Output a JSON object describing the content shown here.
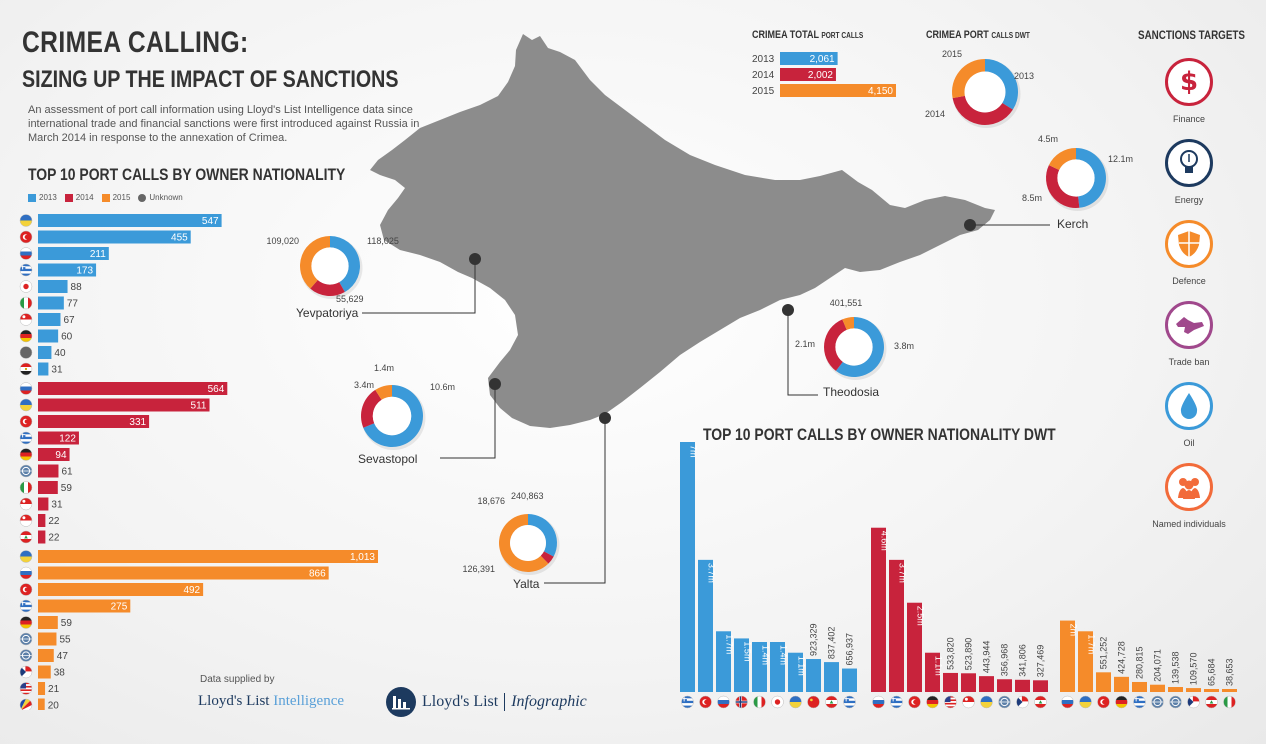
{
  "header": {
    "title": "CRIMEA CALLING:",
    "subtitle": "SIZING UP THE IMPACT OF SANCTIONS",
    "intro": "An assessment of port call information using Lloyd's List Intelligence data since international trade and financial sanctions were first introduced against Russia in March 2014 in response to the annexation of Crimea."
  },
  "colors": {
    "y2013": "#3b9ad9",
    "y2014": "#c8233c",
    "y2015": "#f58b2a",
    "unknown": "#666666",
    "map": "#8c8c8c"
  },
  "legend": {
    "items": [
      "2013",
      "2014",
      "2015",
      "Unknown"
    ]
  },
  "credits": {
    "supplied": "Data supplied by",
    "ll_intelligence_a": "Lloyd's List",
    "ll_intelligence_b": "Intelligence",
    "ll_infographic_a": "Lloyd's List",
    "ll_infographic_b": "Infographic"
  },
  "sanctions": {
    "title": "SANCTIONS TARGETS",
    "items": [
      {
        "label": "Finance",
        "icon": "dollar-icon",
        "color": "#c8233c"
      },
      {
        "label": "Energy",
        "icon": "lightbulb-icon",
        "color": "#1d3a5f"
      },
      {
        "label": "Defence",
        "icon": "shield-icon",
        "color": "#f58b2a"
      },
      {
        "label": "Trade ban",
        "icon": "crimea-map-icon",
        "color": "#a0488c"
      },
      {
        "label": "Oil",
        "icon": "oil-drop-icon",
        "color": "#3b9ad9"
      },
      {
        "label": "Named individuals",
        "icon": "people-icon",
        "color": "#f26b3a"
      }
    ]
  },
  "chart_data": [
    {
      "type": "bar",
      "id": "total",
      "title": "CRIMEA TOTAL",
      "title_small": "PORT CALLS",
      "categories": [
        "2013",
        "2014",
        "2015"
      ],
      "values": [
        2061,
        2002,
        4150
      ],
      "labels": [
        "2,061",
        "2,002",
        "4,150"
      ]
    },
    {
      "type": "pie",
      "id": "dwt",
      "title": "CRIMEA PORT",
      "title_small": "CALLS DWT",
      "slices": [
        {
          "label": "2013",
          "value": 34,
          "year": "y2013"
        },
        {
          "label": "2014",
          "value": 38,
          "year": "y2014"
        },
        {
          "label": "2015",
          "value": 28,
          "year": "y2015"
        }
      ]
    },
    {
      "type": "bar",
      "id": "nationality",
      "title": "TOP 10 PORT CALLS BY OWNER NATIONALITY",
      "orientation": "horizontal",
      "series": [
        {
          "name": "2013",
          "year": "y2013",
          "flags": [
            "ua",
            "tr",
            "ru",
            "gr",
            "jp",
            "it",
            "sg",
            "de",
            "unknown",
            "eg"
          ],
          "values": [
            547,
            455,
            211,
            173,
            88,
            77,
            67,
            60,
            40,
            31
          ]
        },
        {
          "name": "2014",
          "year": "y2014",
          "flags": [
            "ru",
            "ua",
            "tr",
            "gr",
            "de",
            "world",
            "it",
            "sg",
            "sg",
            "lb"
          ],
          "values": [
            564,
            511,
            331,
            122,
            94,
            61,
            59,
            31,
            22,
            22
          ]
        },
        {
          "name": "2015",
          "year": "y2015",
          "flags": [
            "ua",
            "ru",
            "tr",
            "gr",
            "de",
            "world",
            "world",
            "kz",
            "us",
            "sc"
          ],
          "values": [
            1013,
            866,
            492,
            275,
            59,
            55,
            47,
            38,
            21,
            20
          ]
        }
      ]
    },
    {
      "type": "pie",
      "id": "ports",
      "ports": [
        {
          "name": "Yevpatoriya",
          "slices": [
            {
              "label": "118,025",
              "value": 118025,
              "year": "y2013"
            },
            {
              "label": "55,629",
              "value": 55629,
              "year": "y2014"
            },
            {
              "label": "109,020",
              "value": 109020,
              "year": "y2015"
            }
          ]
        },
        {
          "name": "Sevastopol",
          "slices": [
            {
              "label": "10.6m",
              "value": 10.6,
              "year": "y2013"
            },
            {
              "label": "3.4m",
              "value": 3.4,
              "year": "y2014"
            },
            {
              "label": "1.4m",
              "value": 1.4,
              "year": "y2015"
            }
          ]
        },
        {
          "name": "Yalta",
          "slices": [
            {
              "label": "126,391",
              "value": 126391,
              "year": "y2013"
            },
            {
              "label": "18,676",
              "value": 18676,
              "year": "y2014"
            },
            {
              "label": "240,863",
              "value": 240863,
              "year": "y2015"
            }
          ]
        },
        {
          "name": "Theodosia",
          "slices": [
            {
              "label": "3.8m",
              "value": 3.8,
              "year": "y2013"
            },
            {
              "label": "2.1m",
              "value": 2.1,
              "year": "y2014"
            },
            {
              "label": "401,551",
              "value": 0.40155,
              "year": "y2015"
            }
          ]
        },
        {
          "name": "Kerch",
          "slices": [
            {
              "label": "12.1m",
              "value": 12.1,
              "year": "y2013"
            },
            {
              "label": "8.5m",
              "value": 8.5,
              "year": "y2014"
            },
            {
              "label": "4.5m",
              "value": 4.5,
              "year": "y2015"
            }
          ]
        }
      ]
    },
    {
      "type": "bar",
      "id": "dwt_nationality",
      "title": "TOP 10 PORT CALLS BY OWNER NATIONALITY DWT",
      "orientation": "vertical",
      "series": [
        {
          "name": "2013",
          "year": "y2013",
          "flags": [
            "gr",
            "tr",
            "ru",
            "no",
            "it",
            "jp",
            "ua",
            "cn",
            "lb",
            "gr"
          ],
          "labels": [
            "7m",
            "3.7m",
            "1.7m",
            "1.5m",
            "1.4m",
            "1.4m",
            "1.1m",
            "923,329",
            "837,402",
            "656,937"
          ],
          "values": [
            7000000,
            3700000,
            1700000,
            1500000,
            1400000,
            1400000,
            1100000,
            923329,
            837402,
            656937
          ]
        },
        {
          "name": "2014",
          "year": "y2014",
          "flags": [
            "ru",
            "gr",
            "tr",
            "de",
            "us",
            "sg",
            "ua",
            "world",
            "kz",
            "lb"
          ],
          "labels": [
            "4.6m",
            "3.7m",
            "2.5m",
            "1.1m",
            "533,820",
            "523,890",
            "443,944",
            "356,968",
            "341,806",
            "327,469"
          ],
          "values": [
            4600000,
            3700000,
            2500000,
            1100000,
            533820,
            523890,
            443944,
            356968,
            341806,
            327469
          ]
        },
        {
          "name": "2015",
          "year": "y2015",
          "flags": [
            "ru",
            "ua",
            "tr",
            "de",
            "gr",
            "world",
            "world",
            "kz",
            "lb",
            "it"
          ],
          "labels": [
            "2m",
            "1.7m",
            "551,252",
            "424,728",
            "280,815",
            "204,071",
            "139,538",
            "109,570",
            "65,684",
            "38,653"
          ],
          "values": [
            2000000,
            1700000,
            551252,
            424728,
            280815,
            204071,
            139538,
            109570,
            65684,
            38653
          ]
        }
      ]
    }
  ]
}
